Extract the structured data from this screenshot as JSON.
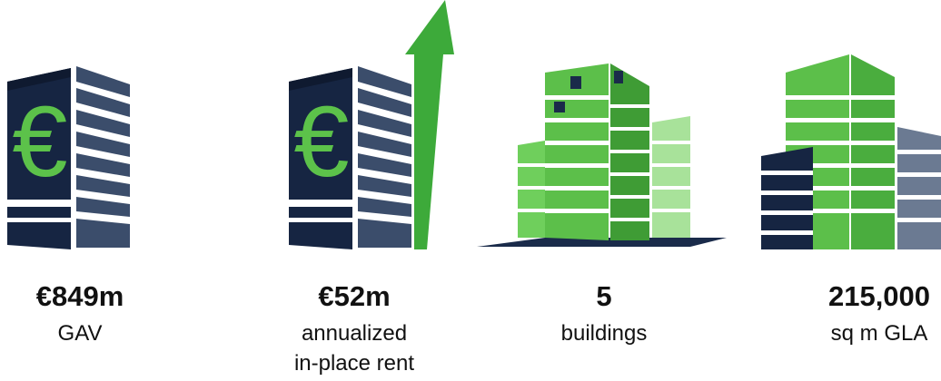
{
  "items": [
    {
      "value": "€849m",
      "label_lines": [
        "GAV"
      ]
    },
    {
      "value": "€52m",
      "label_lines": [
        "annualized",
        "in-place rent"
      ]
    },
    {
      "value": "5",
      "label_lines": [
        "buildings"
      ]
    },
    {
      "value": "215,000",
      "label_lines": [
        "sq m GLA"
      ]
    }
  ]
}
